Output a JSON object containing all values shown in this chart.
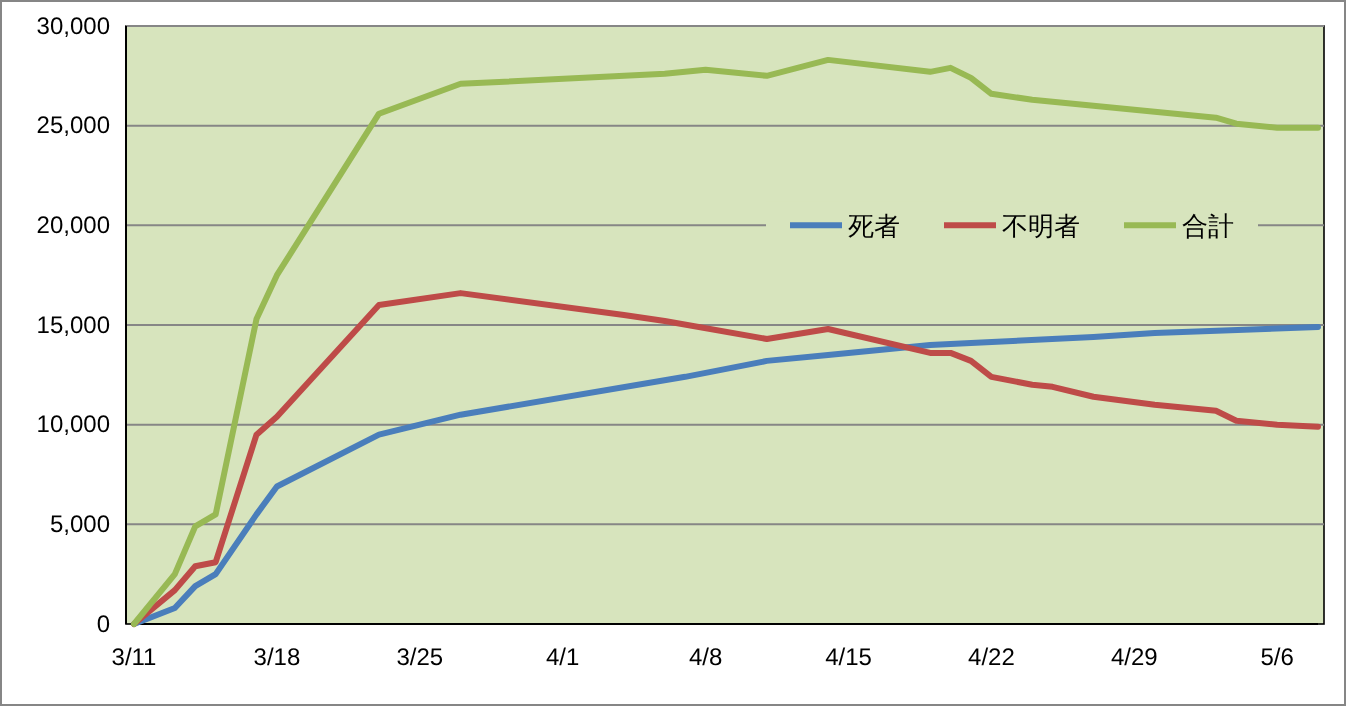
{
  "chart_data": {
    "type": "line",
    "series": [
      {
        "name": "死者",
        "color": "#4a7ebb",
        "x": [
          "--03-11",
          "--03-13",
          "--03-14",
          "--03-15",
          "--03-17",
          "--03-18",
          "--03-23",
          "--03-27",
          "--04-07",
          "--04-11",
          "--04-14",
          "--04-19",
          "--04-21",
          "--04-27",
          "--04-30",
          "--05-08"
        ],
        "values": [
          0,
          800,
          1900,
          2500,
          5500,
          6900,
          9500,
          10500,
          12400,
          13200,
          13500,
          14000,
          14100,
          14400,
          14600,
          14900
        ]
      },
      {
        "name": "不明者",
        "color": "#be4b48",
        "x": [
          "--03-11",
          "--03-13",
          "--03-14",
          "--03-15",
          "--03-17",
          "--03-18",
          "--03-23",
          "--03-27",
          "--04-04",
          "--04-06",
          "--04-11",
          "--04-14",
          "--04-19",
          "--04-20",
          "--04-21",
          "--04-22",
          "--04-24",
          "--04-25",
          "--04-27",
          "--04-30",
          "--05-03",
          "--05-04",
          "--05-06",
          "--05-08"
        ],
        "values": [
          0,
          1700,
          2900,
          3100,
          9500,
          10400,
          16000,
          16600,
          15500,
          15200,
          14300,
          14800,
          13600,
          13600,
          13200,
          12400,
          12000,
          11900,
          11400,
          11000,
          10700,
          10200,
          10000,
          9900
        ]
      },
      {
        "name": "合計",
        "color": "#98b954",
        "x": [
          "--03-11",
          "--03-13",
          "--03-14",
          "--03-15",
          "--03-17",
          "--03-18",
          "--03-23",
          "--03-27",
          "--04-06",
          "--04-08",
          "--04-11",
          "--04-14",
          "--04-19",
          "--04-20",
          "--04-21",
          "--04-22",
          "--04-24",
          "--04-25",
          "--04-27",
          "--04-30",
          "--05-03",
          "--05-04",
          "--05-06",
          "--05-08"
        ],
        "values": [
          0,
          2500,
          4900,
          5500,
          15300,
          17500,
          25600,
          27100,
          27600,
          27800,
          27500,
          28300,
          27700,
          27900,
          27400,
          26600,
          26300,
          26200,
          26000,
          25700,
          25400,
          25100,
          24900,
          24900
        ]
      }
    ],
    "xlim": [
      "--03-11",
      "--05-08"
    ],
    "xticks": [
      {
        "value": "--03-11",
        "label": "3/11"
      },
      {
        "value": "--03-18",
        "label": "3/18"
      },
      {
        "value": "--03-25",
        "label": "3/25"
      },
      {
        "value": "--04-01",
        "label": "4/1"
      },
      {
        "value": "--04-08",
        "label": "4/8"
      },
      {
        "value": "--04-15",
        "label": "4/15"
      },
      {
        "value": "--04-22",
        "label": "4/22"
      },
      {
        "value": "--04-29",
        "label": "4/29"
      },
      {
        "value": "--05-06",
        "label": "5/6"
      }
    ],
    "ylim": [
      0,
      30000
    ],
    "yticks": [
      {
        "value": 0,
        "label": "0"
      },
      {
        "value": 5000,
        "label": "5,000"
      },
      {
        "value": 10000,
        "label": "10,000"
      },
      {
        "value": 15000,
        "label": "15,000"
      },
      {
        "value": 20000,
        "label": "20,000"
      },
      {
        "value": 25000,
        "label": "25,000"
      },
      {
        "value": 30000,
        "label": "30,000"
      }
    ],
    "grid": "y",
    "legend": "top right",
    "marker": "none",
    "line_style": "solid"
  }
}
